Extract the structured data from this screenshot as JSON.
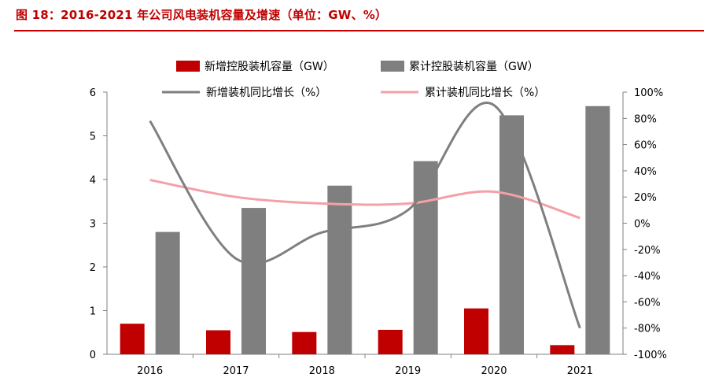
{
  "title": "图 18：2016-2021 年公司风电装机容量及增速（单位：GW、%）",
  "colors": {
    "title": "#c00000",
    "new_capacity_bar": "#c00000",
    "cumulative_capacity_bar": "#7f7f7f",
    "new_growth_line": "#7f7f7f",
    "cumulative_growth_line": "#f4a0a8"
  },
  "chart_data": {
    "type": "bar",
    "title": "图 18：2016-2021 年公司风电装机容量及增速（单位：GW、%）",
    "categories": [
      "2016",
      "2017",
      "2018",
      "2019",
      "2020",
      "2021"
    ],
    "series": [
      {
        "name": "新增控股装机容量（GW）",
        "type": "bar",
        "axis": "left",
        "values": [
          0.7,
          0.55,
          0.51,
          0.56,
          1.05,
          0.21
        ]
      },
      {
        "name": "累计控股装机容量（GW）",
        "type": "bar",
        "axis": "left",
        "values": [
          2.8,
          3.35,
          3.86,
          4.42,
          5.47,
          5.68
        ]
      },
      {
        "name": "新增装机同比增长（%）",
        "type": "line",
        "axis": "right",
        "values": [
          78,
          -27,
          -7,
          10,
          90,
          -80
        ]
      },
      {
        "name": "累计装机同比增长（%）",
        "type": "line",
        "axis": "right",
        "values": [
          33,
          20,
          15,
          15,
          24,
          4
        ]
      }
    ],
    "y_left": {
      "min": 0,
      "max": 6,
      "ticks": [
        "0",
        "1",
        "2",
        "3",
        "4",
        "5",
        "6"
      ]
    },
    "y_right": {
      "min": -100,
      "max": 100,
      "ticks": [
        "-100%",
        "-80%",
        "-60%",
        "-40%",
        "-20%",
        "0%",
        "20%",
        "40%",
        "60%",
        "80%",
        "100%"
      ]
    },
    "grid": false,
    "legend_position": "top"
  }
}
